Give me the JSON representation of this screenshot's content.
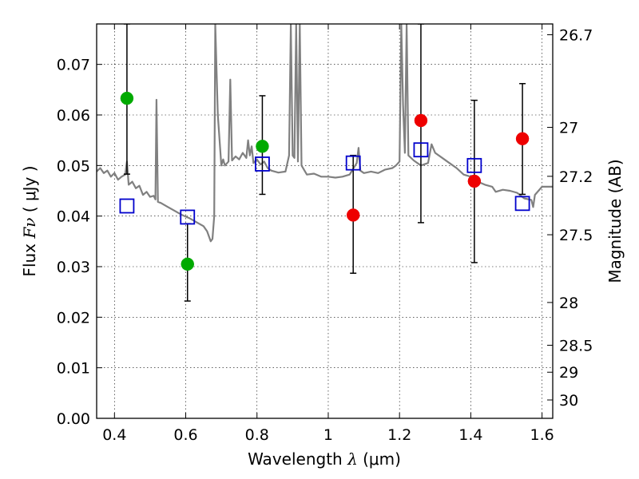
{
  "chart_data": {
    "type": "scatter",
    "title": "",
    "xlabel": {
      "prefix": "Wavelength  ",
      "symbol": "λ",
      "unit": " (μm)"
    },
    "ylabel": {
      "prefix": "Flux  ",
      "symbol": "Fν",
      "unit": "  ( μJy )"
    },
    "y2label": "Magnitude (AB)",
    "xlim": [
      0.35,
      1.63
    ],
    "ylim": [
      0.0,
      0.078
    ],
    "grid": true,
    "x_ticks": [
      {
        "value": 0.4,
        "label": "0.4"
      },
      {
        "value": 0.6,
        "label": "0.6"
      },
      {
        "value": 0.8,
        "label": "0.8"
      },
      {
        "value": 1.0,
        "label": "1"
      },
      {
        "value": 1.2,
        "label": "1.2"
      },
      {
        "value": 1.4,
        "label": "1.4"
      },
      {
        "value": 1.6,
        "label": "1.6"
      }
    ],
    "y_ticks": [
      {
        "value": 0.0,
        "label": "0.00"
      },
      {
        "value": 0.01,
        "label": "0.01"
      },
      {
        "value": 0.02,
        "label": "0.02"
      },
      {
        "value": 0.03,
        "label": "0.03"
      },
      {
        "value": 0.04,
        "label": "0.04"
      },
      {
        "value": 0.05,
        "label": "0.05"
      },
      {
        "value": 0.06,
        "label": "0.06"
      },
      {
        "value": 0.07,
        "label": "0.07"
      }
    ],
    "y2_ticks": [
      {
        "mag": 26.7,
        "label": "26.7"
      },
      {
        "mag": 27.0,
        "label": "27"
      },
      {
        "mag": 27.2,
        "label": "27.2"
      },
      {
        "mag": 27.5,
        "label": "27.5"
      },
      {
        "mag": 28.0,
        "label": "28"
      },
      {
        "mag": 28.5,
        "label": "28.5"
      },
      {
        "mag": 29.0,
        "label": "29"
      },
      {
        "mag": 30.0,
        "label": "30"
      }
    ],
    "series": [
      {
        "role": "model-sed",
        "style": "line",
        "color": "#808080",
        "points": [
          [
            0.35,
            0.0488
          ],
          [
            0.36,
            0.0495
          ],
          [
            0.37,
            0.0485
          ],
          [
            0.38,
            0.049
          ],
          [
            0.39,
            0.0478
          ],
          [
            0.4,
            0.0485
          ],
          [
            0.41,
            0.0472
          ],
          [
            0.42,
            0.0478
          ],
          [
            0.43,
            0.0482
          ],
          [
            0.435,
            0.0508
          ],
          [
            0.44,
            0.0462
          ],
          [
            0.45,
            0.0468
          ],
          [
            0.46,
            0.0455
          ],
          [
            0.47,
            0.046
          ],
          [
            0.48,
            0.0442
          ],
          [
            0.49,
            0.0448
          ],
          [
            0.5,
            0.0438
          ],
          [
            0.51,
            0.044
          ],
          [
            0.515,
            0.0433
          ],
          [
            0.518,
            0.063
          ],
          [
            0.522,
            0.0428
          ],
          [
            0.53,
            0.0426
          ],
          [
            0.55,
            0.0418
          ],
          [
            0.57,
            0.041
          ],
          [
            0.59,
            0.0402
          ],
          [
            0.61,
            0.0396
          ],
          [
            0.63,
            0.0388
          ],
          [
            0.65,
            0.038
          ],
          [
            0.66,
            0.037
          ],
          [
            0.67,
            0.035
          ],
          [
            0.675,
            0.0355
          ],
          [
            0.68,
            0.04
          ],
          [
            0.683,
            0.0779
          ],
          [
            0.69,
            0.06
          ],
          [
            0.7,
            0.05
          ],
          [
            0.705,
            0.0512
          ],
          [
            0.71,
            0.05
          ],
          [
            0.72,
            0.0508
          ],
          [
            0.725,
            0.067
          ],
          [
            0.73,
            0.051
          ],
          [
            0.74,
            0.0518
          ],
          [
            0.75,
            0.0512
          ],
          [
            0.76,
            0.0525
          ],
          [
            0.77,
            0.0515
          ],
          [
            0.775,
            0.055
          ],
          [
            0.78,
            0.052
          ],
          [
            0.785,
            0.0538
          ],
          [
            0.79,
            0.0505
          ],
          [
            0.8,
            0.0512
          ],
          [
            0.81,
            0.0502
          ],
          [
            0.82,
            0.0508
          ],
          [
            0.83,
            0.0495
          ],
          [
            0.84,
            0.049
          ],
          [
            0.86,
            0.0486
          ],
          [
            0.88,
            0.0488
          ],
          [
            0.89,
            0.052
          ],
          [
            0.895,
            0.0779
          ],
          [
            0.9,
            0.052
          ],
          [
            0.905,
            0.0515
          ],
          [
            0.91,
            0.0779
          ],
          [
            0.915,
            0.0508
          ],
          [
            0.92,
            0.0779
          ],
          [
            0.925,
            0.05
          ],
          [
            0.94,
            0.0482
          ],
          [
            0.96,
            0.0484
          ],
          [
            0.98,
            0.0478
          ],
          [
            1.0,
            0.0478
          ],
          [
            1.02,
            0.0476
          ],
          [
            1.04,
            0.0478
          ],
          [
            1.06,
            0.0482
          ],
          [
            1.08,
            0.0505
          ],
          [
            1.085,
            0.0535
          ],
          [
            1.09,
            0.049
          ],
          [
            1.1,
            0.0485
          ],
          [
            1.12,
            0.0488
          ],
          [
            1.14,
            0.0485
          ],
          [
            1.16,
            0.0492
          ],
          [
            1.18,
            0.0495
          ],
          [
            1.19,
            0.05
          ],
          [
            1.2,
            0.0508
          ],
          [
            1.205,
            0.0779
          ],
          [
            1.21,
            0.062
          ],
          [
            1.215,
            0.0525
          ],
          [
            1.22,
            0.0779
          ],
          [
            1.225,
            0.052
          ],
          [
            1.24,
            0.051
          ],
          [
            1.26,
            0.05
          ],
          [
            1.28,
            0.0505
          ],
          [
            1.29,
            0.0542
          ],
          [
            1.3,
            0.0525
          ],
          [
            1.32,
            0.0515
          ],
          [
            1.34,
            0.0505
          ],
          [
            1.36,
            0.0495
          ],
          [
            1.38,
            0.0482
          ],
          [
            1.4,
            0.0478
          ],
          [
            1.42,
            0.0468
          ],
          [
            1.44,
            0.0462
          ],
          [
            1.46,
            0.0458
          ],
          [
            1.47,
            0.0448
          ],
          [
            1.49,
            0.0452
          ],
          [
            1.51,
            0.045
          ],
          [
            1.53,
            0.0446
          ],
          [
            1.55,
            0.0435
          ],
          [
            1.57,
            0.0432
          ],
          [
            1.575,
            0.0418
          ],
          [
            1.58,
            0.0442
          ],
          [
            1.6,
            0.0458
          ],
          [
            1.63,
            0.0458
          ]
        ]
      },
      {
        "role": "observed-detections",
        "style": "circle",
        "color": "#00aa00",
        "points": [
          {
            "x": 0.435,
            "y": 0.0633,
            "err_low": 0.0483,
            "err_high": 0.078
          },
          {
            "x": 0.605,
            "y": 0.0305,
            "err_low": 0.0232,
            "err_high": 0.0385
          },
          {
            "x": 0.815,
            "y": 0.0538,
            "err_low": 0.0443,
            "err_high": 0.0638
          }
        ]
      },
      {
        "role": "observed-nir",
        "style": "circle",
        "color": "#ee0000",
        "points": [
          {
            "x": 1.07,
            "y": 0.0402,
            "err_low": 0.0287,
            "err_high": 0.052
          },
          {
            "x": 1.26,
            "y": 0.0589,
            "err_low": 0.0387,
            "err_high": 0.078
          },
          {
            "x": 1.41,
            "y": 0.0469,
            "err_low": 0.0308,
            "err_high": 0.0629
          },
          {
            "x": 1.545,
            "y": 0.0553,
            "err_low": 0.0443,
            "err_high": 0.0662
          }
        ]
      },
      {
        "role": "model-synthetic-photometry",
        "style": "open-square",
        "color": "#0000cc",
        "points": [
          {
            "x": 0.435,
            "y": 0.042
          },
          {
            "x": 0.605,
            "y": 0.0398
          },
          {
            "x": 0.815,
            "y": 0.0503
          },
          {
            "x": 1.07,
            "y": 0.0505
          },
          {
            "x": 1.26,
            "y": 0.0531
          },
          {
            "x": 1.41,
            "y": 0.05
          },
          {
            "x": 1.545,
            "y": 0.0425
          }
        ]
      }
    ]
  }
}
